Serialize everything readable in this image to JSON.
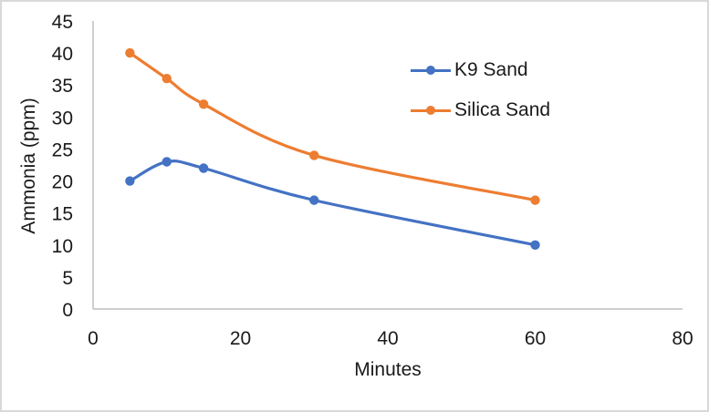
{
  "chart_data": {
    "type": "line",
    "title": "",
    "xlabel": "Minutes",
    "ylabel": "Ammonia (ppm)",
    "x": [
      5,
      10,
      15,
      30,
      60
    ],
    "series": [
      {
        "name": "K9 Sand",
        "color": "#4472C4",
        "values": [
          20,
          23,
          22,
          17,
          10
        ]
      },
      {
        "name": "Silica Sand",
        "color": "#ED7D31",
        "values": [
          40,
          36,
          32,
          24,
          17
        ]
      }
    ],
    "xlim": [
      0,
      80
    ],
    "ylim": [
      0,
      45
    ],
    "x_ticks": [
      0,
      20,
      40,
      60,
      80
    ],
    "y_ticks": [
      0,
      5,
      10,
      15,
      20,
      25,
      30,
      35,
      40,
      45
    ],
    "grid": false,
    "smooth_lines": true,
    "marker": "circle",
    "legend_position": "inside-top-right"
  },
  "colors": {
    "axis_line": "#BFBFBF",
    "text": "#1a1a1a",
    "background": "#FFFFFF",
    "frame_border": "#D9D9D9"
  }
}
